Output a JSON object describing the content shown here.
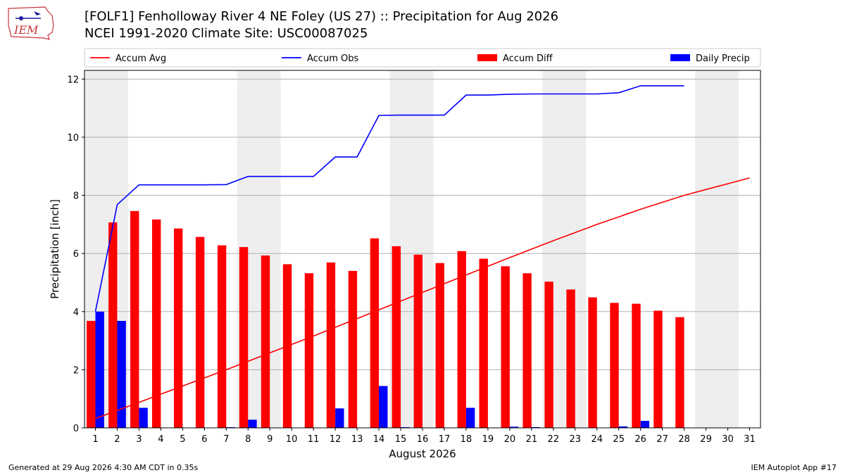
{
  "header": {
    "title": "[FOLF1] Fenholloway River 4 NE Foley (US 27) :: Precipitation for Aug 2026",
    "subtitle": "NCEI 1991-2020 Climate Site: USC00087025",
    "logo_text": "IEM"
  },
  "footer": {
    "generated": "Generated at 29 Aug 2026 4:30 AM CDT in 0.35s",
    "app": "IEM Autoplot App #17"
  },
  "colors": {
    "accum_avg": "#ff0000",
    "accum_obs": "#0000ff",
    "accum_diff": "#ff0000",
    "daily_precip": "#0000ff",
    "weekend_shade": "#eeeeee",
    "grid": "#b0b0b0"
  },
  "chart_data": {
    "type": "bar",
    "title": "",
    "xlabel": "August 2026",
    "ylabel": "Precipitation [inch]",
    "xlim": [
      0.5,
      31.5
    ],
    "ylim": [
      0,
      12.3
    ],
    "yticks": [
      0,
      2,
      4,
      6,
      8,
      10,
      12
    ],
    "grid": "y",
    "legend_placement": "top",
    "days": [
      1,
      2,
      3,
      4,
      5,
      6,
      7,
      8,
      9,
      10,
      11,
      12,
      13,
      14,
      15,
      16,
      17,
      18,
      19,
      20,
      21,
      22,
      23,
      24,
      25,
      26,
      27,
      28,
      29,
      30,
      31
    ],
    "day_labels": [
      "1",
      "2",
      "3",
      "4",
      "5",
      "6",
      "7",
      "8",
      "9",
      "10",
      "11",
      "12",
      "13",
      "14",
      "15",
      "16",
      "17",
      "18",
      "19",
      "20",
      "21",
      "22",
      "23",
      "24",
      "25",
      "26",
      "27",
      "28",
      "29",
      "30",
      "31"
    ],
    "weekend_spans": [
      [
        0.5,
        2.5
      ],
      [
        7.5,
        9.5
      ],
      [
        14.5,
        16.5
      ],
      [
        21.5,
        23.5
      ],
      [
        28.5,
        30.5
      ]
    ],
    "series": [
      {
        "name": "Accum Avg",
        "kind": "line",
        "days": [
          1,
          2,
          3,
          4,
          5,
          6,
          7,
          8,
          9,
          10,
          11,
          12,
          13,
          14,
          15,
          16,
          17,
          18,
          19,
          20,
          21,
          22,
          23,
          24,
          25,
          26,
          27,
          28,
          29,
          30,
          31
        ],
        "values": [
          0.32,
          0.6,
          0.88,
          1.16,
          1.44,
          1.72,
          2.0,
          2.29,
          2.58,
          2.87,
          3.16,
          3.46,
          3.76,
          4.06,
          4.36,
          4.66,
          4.96,
          5.26,
          5.56,
          5.86,
          6.15,
          6.44,
          6.72,
          7.0,
          7.26,
          7.52,
          7.76,
          8.0,
          8.2,
          8.4,
          8.6
        ]
      },
      {
        "name": "Accum Obs",
        "kind": "line",
        "days": [
          1,
          2,
          3,
          4,
          5,
          6,
          7,
          8,
          9,
          10,
          11,
          12,
          13,
          14,
          15,
          16,
          17,
          18,
          19,
          20,
          21,
          22,
          23,
          24,
          25,
          26,
          27,
          28
        ],
        "values": [
          4.0,
          7.68,
          8.36,
          8.36,
          8.36,
          8.36,
          8.37,
          8.65,
          8.65,
          8.65,
          8.65,
          9.32,
          9.32,
          10.75,
          10.76,
          10.76,
          10.76,
          11.45,
          11.45,
          11.48,
          11.49,
          11.49,
          11.49,
          11.49,
          11.53,
          11.77,
          11.77,
          11.77
        ]
      },
      {
        "name": "Accum Diff",
        "kind": "bar",
        "days": [
          1,
          2,
          3,
          4,
          5,
          6,
          7,
          8,
          9,
          10,
          11,
          12,
          13,
          14,
          15,
          16,
          17,
          18,
          19,
          20,
          21,
          22,
          23,
          24,
          25,
          26,
          27,
          28
        ],
        "values": [
          3.68,
          7.07,
          7.46,
          7.17,
          6.86,
          6.57,
          6.28,
          6.22,
          5.93,
          5.63,
          5.32,
          5.69,
          5.4,
          6.52,
          6.25,
          5.96,
          5.67,
          6.08,
          5.82,
          5.56,
          5.32,
          5.03,
          4.76,
          4.49,
          4.3,
          4.27,
          4.03,
          3.81
        ]
      },
      {
        "name": "Daily Precip",
        "kind": "bar",
        "days": [
          1,
          2,
          3,
          4,
          5,
          6,
          7,
          8,
          9,
          10,
          11,
          12,
          13,
          14,
          15,
          16,
          17,
          18,
          19,
          20,
          21,
          22,
          23,
          24,
          25,
          26,
          27,
          28
        ],
        "values": [
          4.0,
          3.68,
          0.69,
          0,
          0,
          0,
          0.02,
          0.28,
          0,
          0,
          0,
          0.67,
          0,
          1.44,
          0.02,
          0,
          0,
          0.69,
          0,
          0.04,
          0.01,
          0,
          0,
          0,
          0.05,
          0.24,
          0,
          0
        ]
      }
    ]
  }
}
